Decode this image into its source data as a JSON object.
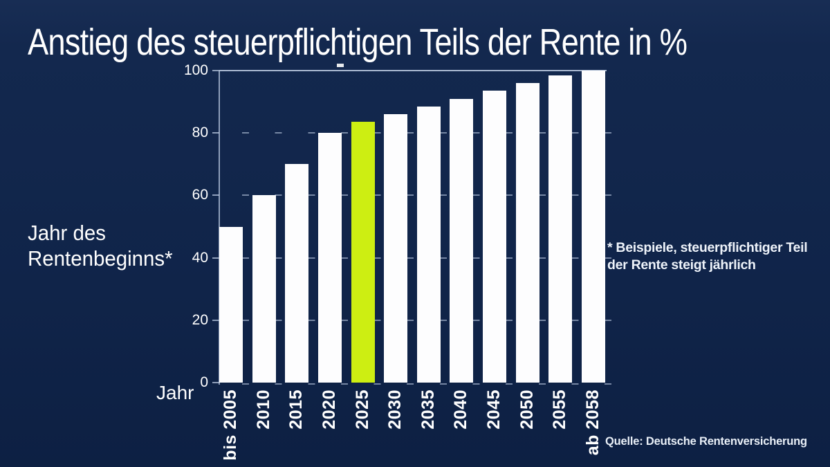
{
  "title": "Anstieg des steuerpflichtigen Teils der Rente in %",
  "y_axis_title": {
    "line1": "Jahr des",
    "line2": "Rentenbeginns*"
  },
  "x_axis_caption": "Jahr",
  "footnote": {
    "line1": "* Beispiele, steuerpflichtiger Teil",
    "line2": "der Rente steigt jährlich"
  },
  "source": "Quelle: Deutsche Rentenversicherung",
  "chart_data": {
    "type": "bar",
    "title": "Anstieg des steuerpflichtigen Teils der Rente in %",
    "categories": [
      "bis 2005",
      "2010",
      "2015",
      "2020",
      "2025",
      "2030",
      "2035",
      "2040",
      "2045",
      "2050",
      "2055",
      "ab 2058"
    ],
    "values": [
      50,
      60,
      70,
      80,
      83.5,
      86,
      88.5,
      91,
      93.5,
      96,
      98.5,
      100
    ],
    "highlight_index": 4,
    "highlight_category": "2025",
    "xlabel": "Jahr",
    "ylabel": "Jahr des Rentenbeginns*",
    "ylim": [
      0,
      100
    ],
    "yticks": [
      0,
      20,
      40,
      60,
      80,
      100
    ],
    "grid": true,
    "legend": false,
    "colors": {
      "background": "#112449",
      "bar": "#FDFDFE",
      "highlight": "#CDEE12",
      "grid": "#BAC8E0",
      "text": "#FFFFFF"
    }
  }
}
